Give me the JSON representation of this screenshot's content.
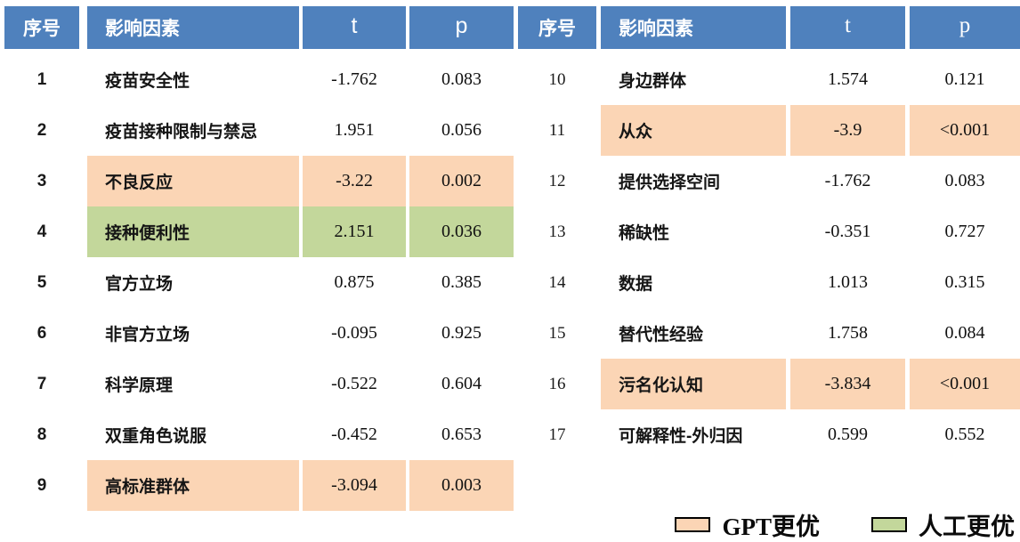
{
  "chart_data": {
    "type": "table",
    "colors": {
      "header_bg": "#4F81BD",
      "header_text": "#FFFFFF",
      "gpt_highlight": "#FBD5B5",
      "human_highlight": "#C3D79B"
    },
    "tables": [
      {
        "headers": {
          "index": "序号",
          "factor": "影响因素",
          "t": "t",
          "p": "p"
        },
        "rows": [
          {
            "index": "1",
            "factor": "疫苗安全性",
            "t": "-1.762",
            "p": "0.083",
            "highlight": "none"
          },
          {
            "index": "2",
            "factor": "疫苗接种限制与禁忌",
            "t": "1.951",
            "p": "0.056",
            "highlight": "none"
          },
          {
            "index": "3",
            "factor": "不良反应",
            "t": "-3.22",
            "p": "0.002",
            "highlight": "gpt"
          },
          {
            "index": "4",
            "factor": "接种便利性",
            "t": "2.151",
            "p": "0.036",
            "highlight": "human"
          },
          {
            "index": "5",
            "factor": "官方立场",
            "t": "0.875",
            "p": "0.385",
            "highlight": "none"
          },
          {
            "index": "6",
            "factor": "非官方立场",
            "t": "-0.095",
            "p": "0.925",
            "highlight": "none"
          },
          {
            "index": "7",
            "factor": "科学原理",
            "t": "-0.522",
            "p": "0.604",
            "highlight": "none"
          },
          {
            "index": "8",
            "factor": "双重角色说服",
            "t": "-0.452",
            "p": "0.653",
            "highlight": "none"
          },
          {
            "index": "9",
            "factor": "高标准群体",
            "t": "-3.094",
            "p": "0.003",
            "highlight": "gpt"
          }
        ]
      },
      {
        "headers": {
          "index": "序号",
          "factor": "影响因素",
          "t": "t",
          "p": "p"
        },
        "rows": [
          {
            "index": "10",
            "factor": "身边群体",
            "t": "1.574",
            "p": "0.121",
            "highlight": "none"
          },
          {
            "index": "11",
            "factor": "从众",
            "t": "-3.9",
            "p": "<0.001",
            "highlight": "gpt"
          },
          {
            "index": "12",
            "factor": "提供选择空间",
            "t": "-1.762",
            "p": "0.083",
            "highlight": "none"
          },
          {
            "index": "13",
            "factor": "稀缺性",
            "t": "-0.351",
            "p": "0.727",
            "highlight": "none"
          },
          {
            "index": "14",
            "factor": "数据",
            "t": "1.013",
            "p": "0.315",
            "highlight": "none"
          },
          {
            "index": "15",
            "factor": "替代性经验",
            "t": "1.758",
            "p": "0.084",
            "highlight": "none"
          },
          {
            "index": "16",
            "factor": "污名化认知",
            "t": "-3.834",
            "p": "<0.001",
            "highlight": "gpt"
          },
          {
            "index": "17",
            "factor": "可解释性-外归因",
            "t": "0.599",
            "p": "0.552",
            "highlight": "none"
          }
        ]
      }
    ],
    "legend": [
      {
        "label": "GPT更优",
        "color": "#FBD5B5"
      },
      {
        "label": "人工更优",
        "color": "#C3D79B"
      }
    ]
  }
}
